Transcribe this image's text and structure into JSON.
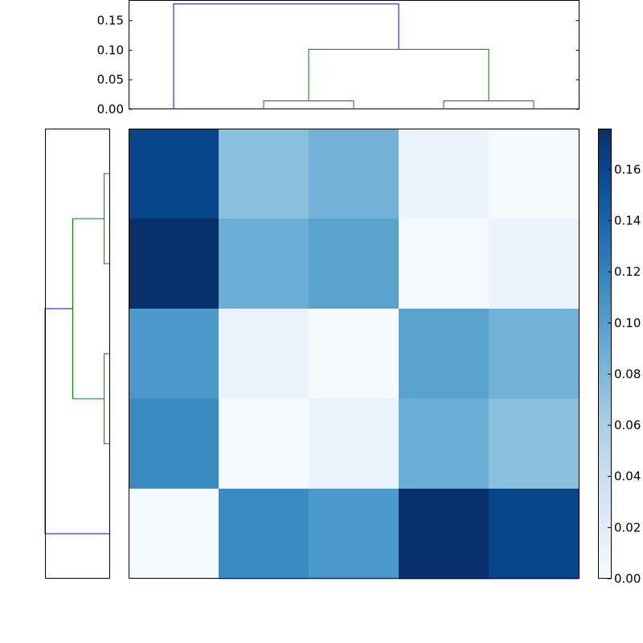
{
  "chart_data": [
    {
      "type": "heatmap",
      "title": "",
      "xlabel": "",
      "ylabel": "",
      "colormap": "Blues",
      "rows": 5,
      "cols": 5,
      "values": [
        [
          0.161,
          0.074,
          0.085,
          0.01,
          0.002
        ],
        [
          0.176,
          0.088,
          0.097,
          0.002,
          0.01
        ],
        [
          0.105,
          0.012,
          0.002,
          0.097,
          0.085
        ],
        [
          0.115,
          0.002,
          0.012,
          0.088,
          0.074
        ],
        [
          0.002,
          0.115,
          0.105,
          0.176,
          0.161
        ]
      ],
      "colorbar": {
        "range": [
          0.0,
          0.176
        ],
        "ticks": [
          0.0,
          0.02,
          0.04,
          0.06,
          0.08,
          0.1,
          0.12,
          0.14,
          0.16
        ],
        "tick_labels": [
          "0.00",
          "0.02",
          "0.04",
          "0.06",
          "0.08",
          "0.10",
          "0.12",
          "0.14",
          "0.16"
        ]
      }
    },
    {
      "type": "dendrogram",
      "orientation": "top",
      "ylim": [
        0.0,
        0.185
      ],
      "yticks": [
        0.0,
        0.05,
        0.1,
        0.15
      ],
      "ytick_labels": [
        "0.00",
        "0.05",
        "0.10",
        "0.15"
      ],
      "leaf_count": 5,
      "links": [
        {
          "x": [
            1.5,
            1.5,
            2.5,
            2.5
          ],
          "y": [
            0.0,
            0.0142,
            0.0142,
            0.0
          ],
          "color": "#008000"
        },
        {
          "x": [
            3.5,
            3.5,
            4.5,
            4.5
          ],
          "y": [
            0.0,
            0.0142,
            0.0142,
            0.0
          ],
          "color": "#008000"
        },
        {
          "x": [
            2.0,
            2.0,
            4.0,
            4.0
          ],
          "y": [
            0.0142,
            0.1015,
            0.1015,
            0.0142
          ],
          "color": "#008000"
        },
        {
          "x": [
            0.5,
            0.5,
            3.0,
            3.0
          ],
          "y": [
            0.0,
            0.1784,
            0.1784,
            0.1015
          ],
          "color": "#0000ff"
        }
      ]
    },
    {
      "type": "dendrogram",
      "orientation": "left",
      "xlim": [
        0.1784,
        0.0
      ],
      "leaf_count": 5,
      "links": [
        {
          "pos": [
            0.5,
            0.5,
            1.5,
            1.5
          ],
          "h": [
            0.0,
            0.0142,
            0.0142,
            0.0
          ],
          "color": "#008000"
        },
        {
          "pos": [
            2.5,
            2.5,
            3.5,
            3.5
          ],
          "h": [
            0.0,
            0.0142,
            0.0142,
            0.0
          ],
          "color": "#008000"
        },
        {
          "pos": [
            1.0,
            1.0,
            3.0,
            3.0
          ],
          "h": [
            0.0142,
            0.1015,
            0.1015,
            0.0142
          ],
          "color": "#008000"
        },
        {
          "pos": [
            2.0,
            2.0,
            4.5,
            4.5
          ],
          "h": [
            0.1015,
            0.1784,
            0.1784,
            0.0
          ],
          "color": "#0000ff"
        }
      ]
    }
  ]
}
